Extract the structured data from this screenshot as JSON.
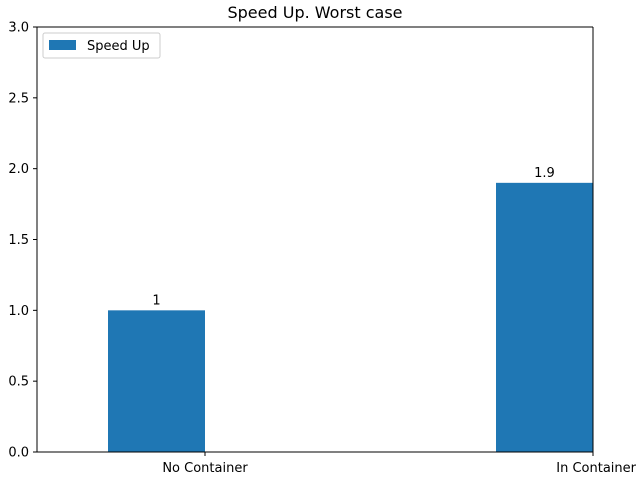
{
  "chart_data": {
    "type": "bar",
    "title": "Speed Up. Worst case",
    "xlabel": "",
    "ylabel": "",
    "categories": [
      "No Container",
      "In Container"
    ],
    "series": [
      {
        "name": "Speed Up",
        "values": [
          1,
          1.9
        ],
        "color": "#1f77b4",
        "data_labels": [
          "1",
          "1.9"
        ]
      }
    ],
    "ylim": [
      0,
      3.0
    ],
    "yticks": [
      0.0,
      0.5,
      1.0,
      1.5,
      2.0,
      2.5,
      3.0
    ],
    "ytick_labels": [
      "0.0",
      "0.5",
      "1.0",
      "1.5",
      "2.0",
      "2.5",
      "3.0"
    ],
    "grid": false,
    "legend": {
      "placement": "top-left",
      "entries": [
        "Speed Up"
      ]
    }
  }
}
